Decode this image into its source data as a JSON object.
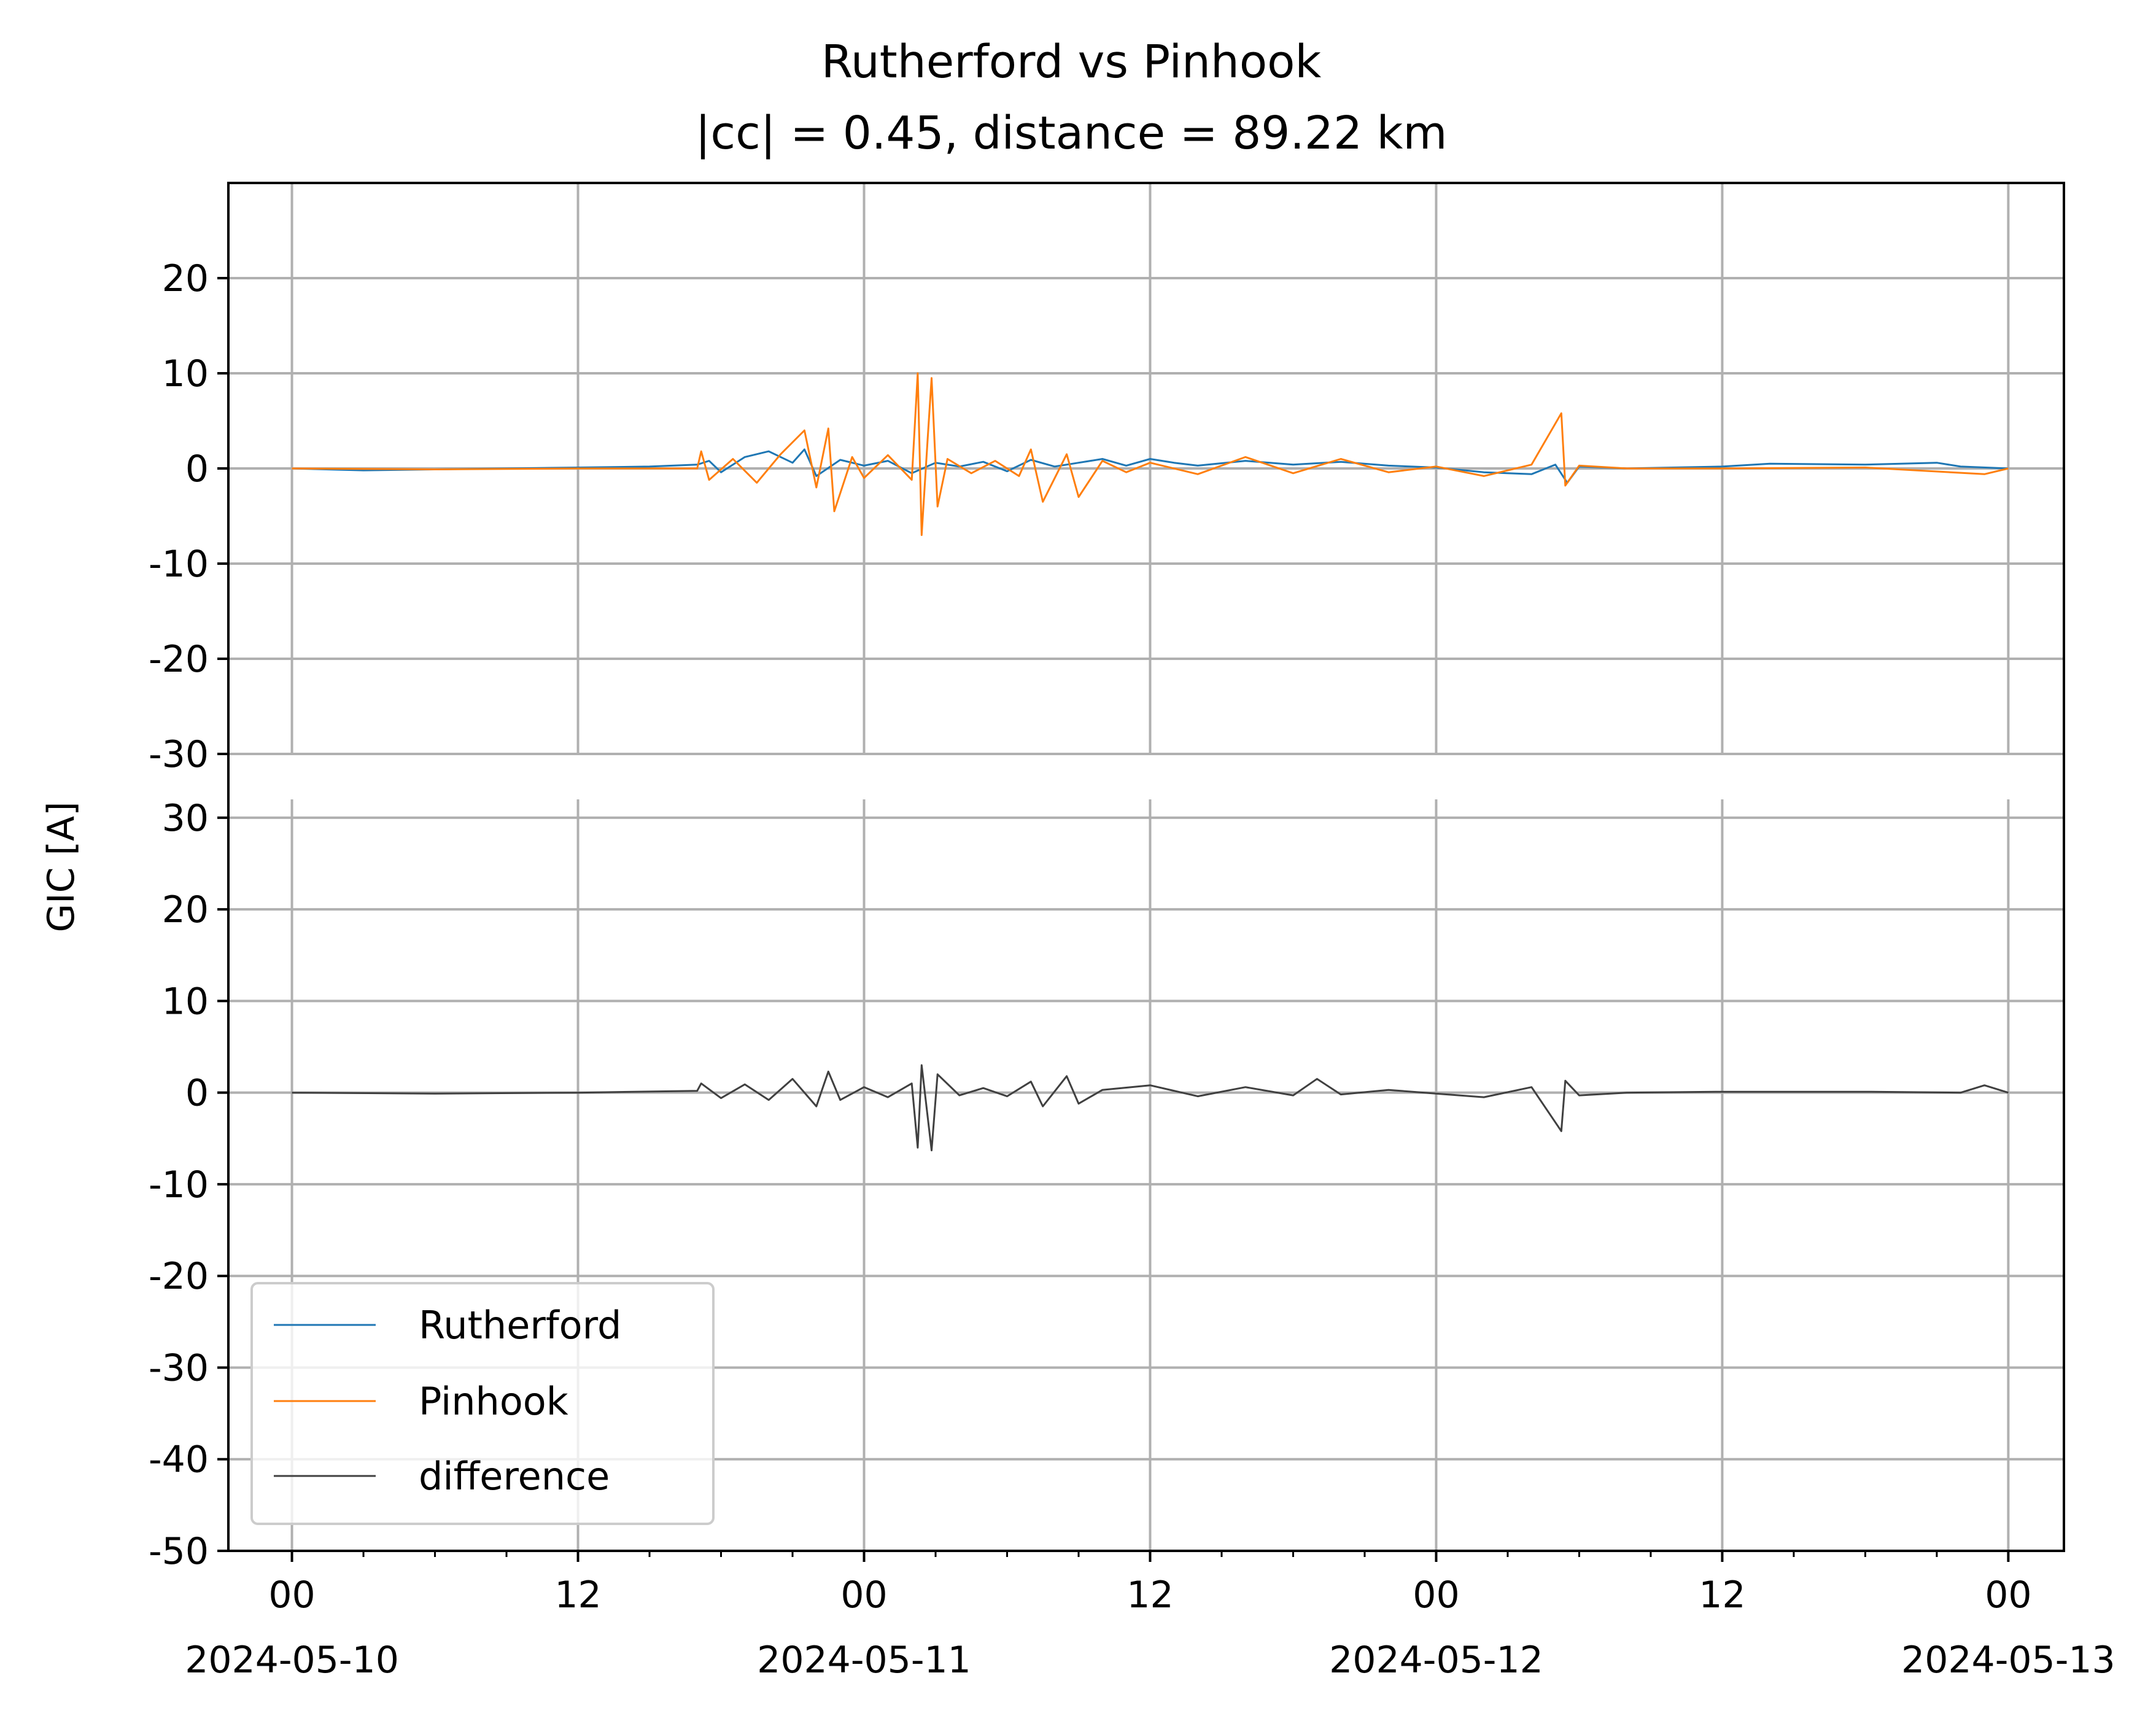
{
  "chart_data": {
    "type": "line",
    "title": "Rutherford vs Pinhook",
    "subtitle": "|cc| = 0.45, distance = 89.22 km",
    "ylabel": "GIC [A]",
    "xlabel": "",
    "xlim": [
      "2024-05-09T21:20",
      "2024-05-13T02:20"
    ],
    "x_ticks": [
      {
        "at": "2024-05-10T00:00",
        "label": "00",
        "date": "2024-05-10"
      },
      {
        "at": "2024-05-10T12:00",
        "label": "12",
        "date": ""
      },
      {
        "at": "2024-05-11T00:00",
        "label": "00",
        "date": "2024-05-11"
      },
      {
        "at": "2024-05-11T12:00",
        "label": "12",
        "date": ""
      },
      {
        "at": "2024-05-12T00:00",
        "label": "00",
        "date": "2024-05-12"
      },
      {
        "at": "2024-05-12T12:00",
        "label": "12",
        "date": ""
      },
      {
        "at": "2024-05-13T00:00",
        "label": "00",
        "date": "2024-05-13"
      }
    ],
    "grid": true,
    "legend_position": "lower-left",
    "panels": [
      {
        "name": "top",
        "ylim": [
          -30,
          30
        ],
        "y_ticks": [
          20,
          10,
          0,
          -10,
          -20,
          -30
        ],
        "y_tick_labels": [
          "20",
          "10",
          "0",
          "-10",
          "-20",
          "-30"
        ],
        "series": [
          {
            "name": "Rutherford",
            "color": "#1f77b4",
            "points": [
              [
                "2024-05-10T00:00",
                0.0
              ],
              [
                "2024-05-10T03:00",
                -0.2
              ],
              [
                "2024-05-10T06:00",
                -0.1
              ],
              [
                "2024-05-10T09:00",
                0.0
              ],
              [
                "2024-05-10T12:00",
                0.1
              ],
              [
                "2024-05-10T15:00",
                0.2
              ],
              [
                "2024-05-10T17:00",
                0.4
              ],
              [
                "2024-05-10T17:30",
                0.8
              ],
              [
                "2024-05-10T18:00",
                -0.4
              ],
              [
                "2024-05-10T19:00",
                1.2
              ],
              [
                "2024-05-10T20:00",
                1.8
              ],
              [
                "2024-05-10T21:00",
                0.6
              ],
              [
                "2024-05-10T21:30",
                2.0
              ],
              [
                "2024-05-10T22:00",
                -0.8
              ],
              [
                "2024-05-10T23:00",
                0.9
              ],
              [
                "2024-05-11T00:00",
                0.3
              ],
              [
                "2024-05-11T01:00",
                0.8
              ],
              [
                "2024-05-11T02:00",
                -0.5
              ],
              [
                "2024-05-11T03:00",
                0.6
              ],
              [
                "2024-05-11T04:00",
                0.2
              ],
              [
                "2024-05-11T05:00",
                0.7
              ],
              [
                "2024-05-11T06:00",
                -0.3
              ],
              [
                "2024-05-11T07:00",
                0.9
              ],
              [
                "2024-05-11T08:00",
                0.2
              ],
              [
                "2024-05-11T09:00",
                0.6
              ],
              [
                "2024-05-11T10:00",
                1.0
              ],
              [
                "2024-05-11T11:00",
                0.3
              ],
              [
                "2024-05-11T12:00",
                1.0
              ],
              [
                "2024-05-11T13:00",
                0.6
              ],
              [
                "2024-05-11T14:00",
                0.3
              ],
              [
                "2024-05-11T16:00",
                0.8
              ],
              [
                "2024-05-11T18:00",
                0.4
              ],
              [
                "2024-05-11T20:00",
                0.7
              ],
              [
                "2024-05-11T22:00",
                0.3
              ],
              [
                "2024-05-12T00:00",
                0.1
              ],
              [
                "2024-05-12T02:00",
                -0.4
              ],
              [
                "2024-05-12T04:00",
                -0.6
              ],
              [
                "2024-05-12T05:00",
                0.4
              ],
              [
                "2024-05-12T05:30",
                -1.5
              ],
              [
                "2024-05-12T06:00",
                0.2
              ],
              [
                "2024-05-12T08:00",
                0.0
              ],
              [
                "2024-05-12T12:00",
                0.2
              ],
              [
                "2024-05-12T14:00",
                0.5
              ],
              [
                "2024-05-12T18:00",
                0.4
              ],
              [
                "2024-05-12T21:00",
                0.6
              ],
              [
                "2024-05-12T22:00",
                0.2
              ],
              [
                "2024-05-13T00:00",
                0.0
              ]
            ]
          },
          {
            "name": "Pinhook",
            "color": "#ff7f0e",
            "points": [
              [
                "2024-05-10T00:00",
                0.0
              ],
              [
                "2024-05-10T06:00",
                -0.1
              ],
              [
                "2024-05-10T12:00",
                0.0
              ],
              [
                "2024-05-10T17:00",
                0.0
              ],
              [
                "2024-05-10T17:10",
                1.8
              ],
              [
                "2024-05-10T17:30",
                -1.2
              ],
              [
                "2024-05-10T18:30",
                1.0
              ],
              [
                "2024-05-10T19:30",
                -1.5
              ],
              [
                "2024-05-10T20:30",
                1.5
              ],
              [
                "2024-05-10T21:30",
                4.0
              ],
              [
                "2024-05-10T22:00",
                -2.0
              ],
              [
                "2024-05-10T22:30",
                4.2
              ],
              [
                "2024-05-10T22:45",
                -4.5
              ],
              [
                "2024-05-10T23:30",
                1.2
              ],
              [
                "2024-05-11T00:00",
                -1.0
              ],
              [
                "2024-05-11T01:00",
                1.4
              ],
              [
                "2024-05-11T02:00",
                -1.2
              ],
              [
                "2024-05-11T02:15",
                10.0
              ],
              [
                "2024-05-11T02:25",
                -7.0
              ],
              [
                "2024-05-11T02:40",
                3.0
              ],
              [
                "2024-05-11T02:50",
                9.5
              ],
              [
                "2024-05-11T03:05",
                -4.0
              ],
              [
                "2024-05-11T03:30",
                1.0
              ],
              [
                "2024-05-11T04:30",
                -0.5
              ],
              [
                "2024-05-11T05:30",
                0.8
              ],
              [
                "2024-05-11T06:30",
                -0.8
              ],
              [
                "2024-05-11T07:00",
                2.0
              ],
              [
                "2024-05-11T07:30",
                -3.5
              ],
              [
                "2024-05-11T08:30",
                1.5
              ],
              [
                "2024-05-11T09:00",
                -3.0
              ],
              [
                "2024-05-11T10:00",
                0.8
              ],
              [
                "2024-05-11T11:00",
                -0.4
              ],
              [
                "2024-05-11T12:00",
                0.6
              ],
              [
                "2024-05-11T14:00",
                -0.6
              ],
              [
                "2024-05-11T16:00",
                1.2
              ],
              [
                "2024-05-11T18:00",
                -0.5
              ],
              [
                "2024-05-11T20:00",
                1.0
              ],
              [
                "2024-05-11T22:00",
                -0.4
              ],
              [
                "2024-05-12T00:00",
                0.2
              ],
              [
                "2024-05-12T02:00",
                -0.8
              ],
              [
                "2024-05-12T04:00",
                0.4
              ],
              [
                "2024-05-12T05:15",
                5.8
              ],
              [
                "2024-05-12T05:25",
                -1.8
              ],
              [
                "2024-05-12T06:00",
                0.3
              ],
              [
                "2024-05-12T08:00",
                0.0
              ],
              [
                "2024-05-12T12:00",
                0.0
              ],
              [
                "2024-05-12T18:00",
                0.1
              ],
              [
                "2024-05-12T23:00",
                -0.6
              ],
              [
                "2024-05-13T00:00",
                0.0
              ]
            ]
          }
        ]
      },
      {
        "name": "bottom",
        "ylim": [
          -50,
          32
        ],
        "y_ticks": [
          30,
          20,
          10,
          0,
          -10,
          -20,
          -30,
          -40,
          -50
        ],
        "y_tick_labels": [
          "30",
          "20",
          "10",
          "0",
          "-10",
          "-20",
          "-30",
          "-40",
          "-50"
        ],
        "series": [
          {
            "name": "difference",
            "color": "#404040",
            "points": [
              [
                "2024-05-10T00:00",
                0.0
              ],
              [
                "2024-05-10T06:00",
                -0.1
              ],
              [
                "2024-05-10T12:00",
                0.0
              ],
              [
                "2024-05-10T17:00",
                0.2
              ],
              [
                "2024-05-10T17:10",
                1.0
              ],
              [
                "2024-05-10T18:00",
                -0.6
              ],
              [
                "2024-05-10T19:00",
                0.9
              ],
              [
                "2024-05-10T20:00",
                -0.8
              ],
              [
                "2024-05-10T21:00",
                1.5
              ],
              [
                "2024-05-10T22:00",
                -1.5
              ],
              [
                "2024-05-10T22:30",
                2.3
              ],
              [
                "2024-05-10T23:00",
                -0.8
              ],
              [
                "2024-05-11T00:00",
                0.6
              ],
              [
                "2024-05-11T01:00",
                -0.5
              ],
              [
                "2024-05-11T02:00",
                1.0
              ],
              [
                "2024-05-11T02:15",
                -6.0
              ],
              [
                "2024-05-11T02:25",
                3.0
              ],
              [
                "2024-05-11T02:50",
                -6.3
              ],
              [
                "2024-05-11T03:05",
                2.0
              ],
              [
                "2024-05-11T04:00",
                -0.3
              ],
              [
                "2024-05-11T05:00",
                0.5
              ],
              [
                "2024-05-11T06:00",
                -0.4
              ],
              [
                "2024-05-11T07:00",
                1.2
              ],
              [
                "2024-05-11T07:30",
                -1.5
              ],
              [
                "2024-05-11T08:30",
                1.8
              ],
              [
                "2024-05-11T09:00",
                -1.2
              ],
              [
                "2024-05-11T10:00",
                0.3
              ],
              [
                "2024-05-11T12:00",
                0.8
              ],
              [
                "2024-05-11T14:00",
                -0.4
              ],
              [
                "2024-05-11T16:00",
                0.6
              ],
              [
                "2024-05-11T18:00",
                -0.3
              ],
              [
                "2024-05-11T19:00",
                1.5
              ],
              [
                "2024-05-11T20:00",
                -0.2
              ],
              [
                "2024-05-11T22:00",
                0.3
              ],
              [
                "2024-05-12T00:00",
                -0.1
              ],
              [
                "2024-05-12T02:00",
                -0.5
              ],
              [
                "2024-05-12T04:00",
                0.6
              ],
              [
                "2024-05-12T05:15",
                -4.2
              ],
              [
                "2024-05-12T05:25",
                1.3
              ],
              [
                "2024-05-12T06:00",
                -0.3
              ],
              [
                "2024-05-12T08:00",
                0.0
              ],
              [
                "2024-05-12T12:00",
                0.1
              ],
              [
                "2024-05-12T18:00",
                0.1
              ],
              [
                "2024-05-12T22:00",
                0.0
              ],
              [
                "2024-05-12T23:00",
                0.8
              ],
              [
                "2024-05-13T00:00",
                0.0
              ]
            ]
          }
        ]
      }
    ]
  }
}
